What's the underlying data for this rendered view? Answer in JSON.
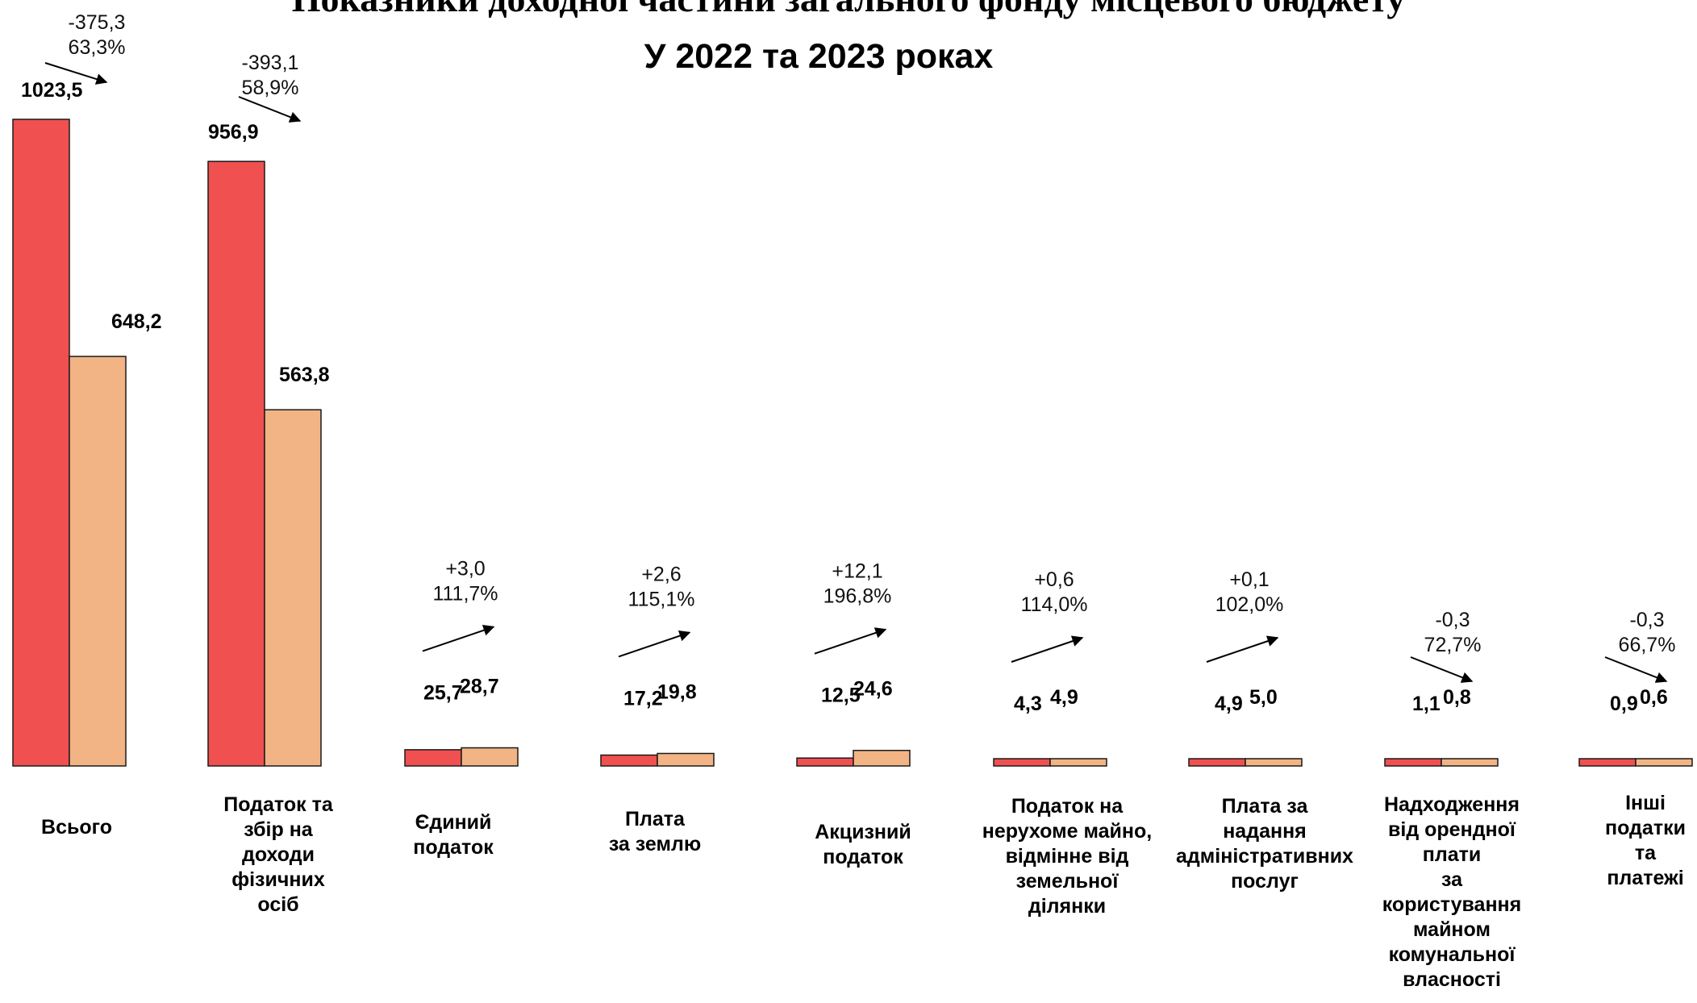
{
  "chart_data": {
    "type": "bar",
    "title": "Показники доходної частини загального фонду місцевого бюджету",
    "subtitle": "У 2022 та 2023 роках",
    "categories": [
      "Всього",
      "Податок та збір на доходи фізичних осіб",
      "Єдиний податок",
      "Плата за землю",
      "Акцизний податок",
      "Податок на нерухоме майно, відмінне від земельної ділянки",
      "Плата за надання адміністративних послуг",
      "Надходження від орендної плати за користування майном комунальної власності",
      "Інші податки та платежі"
    ],
    "category_lines": [
      [
        "Всього"
      ],
      [
        "Податок та",
        "збір на",
        "доходи",
        "фізичних",
        "осіб"
      ],
      [
        "Єдиний",
        "податок"
      ],
      [
        "Плата",
        "за землю"
      ],
      [
        "Акцизний",
        "податок"
      ],
      [
        "Податок на",
        "нерухоме майно,",
        "відмінне від",
        "земельної",
        "ділянки"
      ],
      [
        "Плата за",
        "надання",
        "адміністративних",
        "послуг"
      ],
      [
        "Надходження",
        "від орендної",
        "плати",
        "за",
        "користування",
        "майном",
        "комунальної",
        "власності"
      ],
      [
        "Інші",
        "податки",
        "та",
        "платежі"
      ]
    ],
    "series": [
      {
        "values": [
          1023.5,
          956.9,
          25.7,
          17.2,
          12.5,
          4.3,
          4.9,
          1.1,
          0.9
        ],
        "color": "#f05050"
      },
      {
        "values": [
          648.2,
          563.8,
          28.7,
          19.8,
          24.6,
          4.9,
          5.0,
          0.8,
          0.6
        ],
        "color": "#f2b485"
      }
    ],
    "value_labels": [
      [
        "1023,5",
        "648,2"
      ],
      [
        "956,9",
        "563,8"
      ],
      [
        "25,7",
        "28,7"
      ],
      [
        "17,2",
        "19,8"
      ],
      [
        "12,5",
        "24,6"
      ],
      [
        "4,3",
        "4,9"
      ],
      [
        "4,9",
        "5,0"
      ],
      [
        "1,1",
        "0,8"
      ],
      [
        "0,9",
        "0,6"
      ]
    ],
    "changes": [
      {
        "diff": "-375,3",
        "pct": "63,3%",
        "direction": "down"
      },
      {
        "diff": "-393,1",
        "pct": "58,9%",
        "direction": "down"
      },
      {
        "diff": "+3,0",
        "pct": "111,7%",
        "direction": "up"
      },
      {
        "diff": "+2,6",
        "pct": "115,1%",
        "direction": "up"
      },
      {
        "diff": "+12,1",
        "pct": "196,8%",
        "direction": "up"
      },
      {
        "diff": "+0,6",
        "pct": "114,0%",
        "direction": "up"
      },
      {
        "diff": "+0,1",
        "pct": "102,0%",
        "direction": "up"
      },
      {
        "diff": "-0,3",
        "pct": "72,7%",
        "direction": "down"
      },
      {
        "diff": "-0,3",
        "pct": "66,7%",
        "direction": "down"
      }
    ],
    "ylim": [
      0,
      1023.5
    ],
    "grid": false,
    "legend": "none"
  }
}
